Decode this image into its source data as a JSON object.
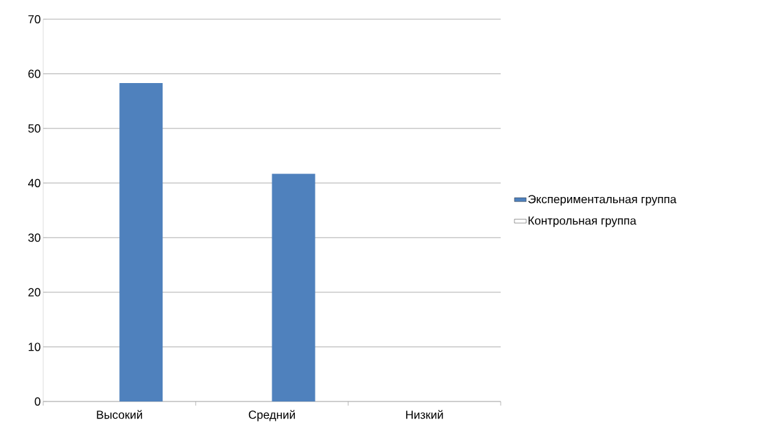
{
  "chart_data": {
    "type": "bar",
    "categories": [
      "Высокий",
      "Средний",
      "Низкий"
    ],
    "series": [
      {
        "name": "Экспериментальная группа",
        "color": "#4f81bd",
        "values": [
          58.3,
          41.7,
          0
        ]
      },
      {
        "name": "Контрольная группа",
        "color": "#ffffff",
        "values": [
          null,
          null,
          null
        ]
      }
    ],
    "ylim": [
      0,
      70
    ],
    "yticks": [
      0,
      10,
      20,
      30,
      40,
      50,
      60,
      70
    ],
    "grid": "y",
    "legend": "right"
  }
}
